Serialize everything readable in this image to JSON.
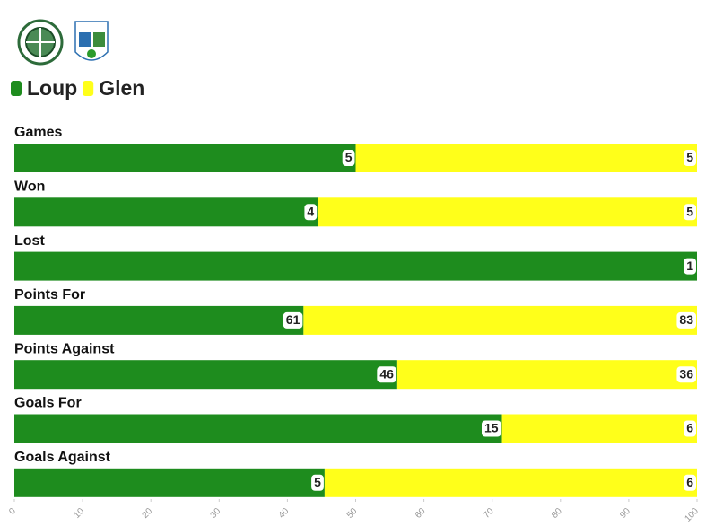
{
  "chart_data": {
    "type": "bar",
    "stacking": "percent",
    "orientation": "horizontal",
    "categories": [
      "Games",
      "Won",
      "Lost",
      "Points For",
      "Points Against",
      "Goals For",
      "Goals Against"
    ],
    "series": [
      {
        "name": "Loup",
        "color": "#1e8c1e",
        "values": [
          5,
          4,
          1,
          61,
          46,
          15,
          5
        ]
      },
      {
        "name": "Glen",
        "color": "#ffff1a",
        "values": [
          5,
          5,
          0,
          83,
          36,
          6,
          6
        ]
      }
    ],
    "xlim": [
      0,
      100
    ],
    "xticks": [
      0,
      10,
      20,
      30,
      40,
      50,
      60,
      70,
      80,
      90,
      100
    ]
  }
}
